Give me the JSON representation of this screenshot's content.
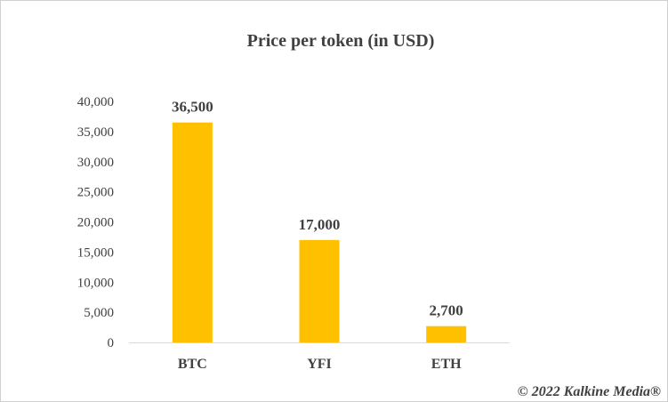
{
  "chart_data": {
    "type": "bar",
    "title": "Price per token (in USD)",
    "categories": [
      "BTC",
      "YFI",
      "ETH"
    ],
    "values": [
      36500,
      17000,
      2700
    ],
    "data_labels": [
      "36,500",
      "17,000",
      "2,700"
    ],
    "yticks": [
      "0",
      "5,000",
      "10,000",
      "15,000",
      "20,000",
      "25,000",
      "30,000",
      "35,000",
      "40,000"
    ],
    "ylim": [
      0,
      40000
    ],
    "xlabel": "",
    "ylabel": "",
    "grid": false,
    "bar_color": "#FFC000"
  },
  "copyright": "© 2022 Kalkine Media®"
}
